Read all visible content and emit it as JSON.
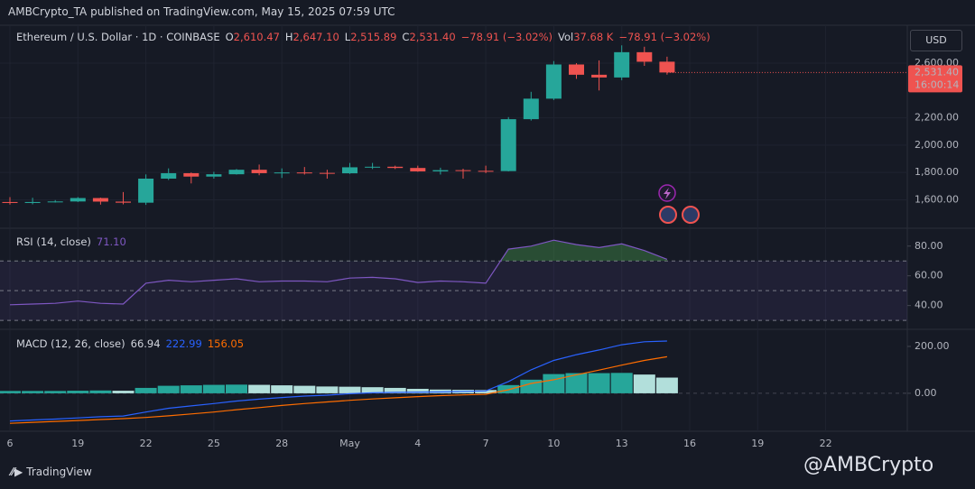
{
  "header": "AMBCrypto_TA published on TradingView.com, May 15, 2025 07:59 UTC",
  "brand": "TradingView",
  "watermark": "@AMBCrypto",
  "chart_data": [
    {
      "type": "candlestick",
      "title": "Ethereum / U.S. Dollar · 1D · COINBASE",
      "legend": [
        {
          "label": "O",
          "value": "2,610.47"
        },
        {
          "label": "H",
          "value": "2,647.10"
        },
        {
          "label": "L",
          "value": "2,515.89"
        },
        {
          "label": "C",
          "value": "2,531.40"
        }
      ],
      "change": "−78.91 (−3.02%)",
      "volume": {
        "label": "Vol",
        "value": "37.68 K",
        "change": "−78.91 (−3.02%)"
      },
      "currency": "USD",
      "last_price": {
        "label": "2,531.40",
        "countdown": "16:00:14"
      },
      "categories": [
        "6",
        null,
        null,
        "19",
        null,
        null,
        "22",
        null,
        null,
        "25",
        null,
        null,
        "28",
        null,
        null,
        "May",
        null,
        null,
        "4",
        null,
        null,
        "7",
        null,
        null,
        "10",
        null,
        null,
        "13",
        null,
        null,
        "16",
        null,
        null,
        "19",
        null,
        null,
        "22"
      ],
      "open": [
        1584,
        1577,
        1584,
        1588,
        1613,
        1587,
        1579,
        1755,
        1795,
        1770,
        1787,
        1820,
        1795,
        1800,
        1797,
        1794,
        1838,
        1842,
        1833,
        1808,
        1817,
        1812,
        1810,
        2190,
        2340,
        2590,
        2515,
        2495,
        2680,
        2610.47,
        null,
        null,
        null,
        null,
        null,
        null,
        null
      ],
      "high": [
        1620,
        1615,
        1598,
        1620,
        1616,
        1657,
        1786,
        1830,
        1800,
        1805,
        1825,
        1858,
        1830,
        1840,
        1820,
        1870,
        1870,
        1850,
        1850,
        1835,
        1828,
        1850,
        2205,
        2390,
        2615,
        2600,
        2620,
        2730,
        2720,
        2647.1,
        null,
        null,
        null,
        null,
        null,
        null,
        null
      ],
      "low": [
        1565,
        1567,
        1580,
        1584,
        1565,
        1567,
        1563,
        1745,
        1720,
        1755,
        1785,
        1780,
        1760,
        1785,
        1755,
        1790,
        1825,
        1825,
        1805,
        1785,
        1755,
        1795,
        1808,
        2180,
        2330,
        2485,
        2400,
        2475,
        2580,
        2515.89,
        null,
        null,
        null,
        null,
        null,
        null,
        null
      ],
      "close": [
        1577,
        1584,
        1588,
        1613,
        1587,
        1579,
        1755,
        1795,
        1770,
        1787,
        1820,
        1795,
        1800,
        1797,
        1794,
        1838,
        1842,
        1833,
        1808,
        1817,
        1812,
        1810,
        2190,
        2340,
        2590,
        2515,
        2495,
        2680,
        2610,
        2531.4,
        null,
        null,
        null,
        null,
        null,
        null,
        null
      ],
      "up_color": "#26a69a",
      "down_color": "#ef5350",
      "ylim": [
        1392,
        2877
      ],
      "yticks": [
        {
          "value": 1600,
          "label": "1,600.00"
        },
        {
          "value": 1800,
          "label": "1,800.00"
        },
        {
          "value": 2000,
          "label": "2,000.00"
        },
        {
          "value": 2200,
          "label": "2,200.00"
        },
        {
          "value": 2600,
          "label": "2,600.00"
        }
      ],
      "grid": true
    },
    {
      "type": "line",
      "title": "RSI (14, close)",
      "legend_values": [
        "71.10"
      ],
      "values": [
        40.5,
        41,
        41.5,
        43,
        41.5,
        41,
        55,
        57,
        56,
        57,
        58,
        56,
        56.5,
        56.5,
        56,
        58.5,
        59,
        58,
        55.5,
        56.5,
        56,
        55,
        78,
        80,
        84,
        81,
        79,
        81.5,
        77,
        71.1,
        null,
        null,
        null,
        null,
        null,
        null,
        null
      ],
      "color": "#7e57c2",
      "bands": [
        30,
        50,
        70
      ],
      "ylim": [
        24,
        92
      ],
      "yticks": [
        {
          "value": 40,
          "label": "40.00"
        },
        {
          "value": 60,
          "label": "60.00"
        },
        {
          "value": 80,
          "label": "80.00"
        }
      ]
    },
    {
      "type": "macd",
      "title": "MACD (12, 26, close)",
      "legend_values": [
        "66.94",
        "222.99",
        "156.05"
      ],
      "histogram": [
        10,
        10,
        10,
        11,
        12,
        11,
        23,
        32,
        34,
        36,
        37,
        36,
        34,
        32,
        29,
        28,
        26,
        23,
        19,
        16,
        15,
        14,
        35,
        58,
        82,
        86,
        86,
        87,
        80,
        66.94,
        null,
        null,
        null,
        null,
        null,
        null,
        null
      ],
      "macd": [
        -118,
        -114,
        -110,
        -105,
        -100,
        -97,
        -80,
        -64,
        -54,
        -44,
        -33,
        -25,
        -18,
        -12,
        -8,
        -2,
        2,
        4,
        5,
        6,
        8,
        10,
        50,
        100,
        140,
        165,
        185,
        207,
        220,
        222.99,
        null,
        null,
        null,
        null,
        null,
        null,
        null
      ],
      "signal": [
        -128,
        -124,
        -120,
        -116,
        -112,
        -108,
        -103,
        -96,
        -88,
        -80,
        -70,
        -61,
        -52,
        -44,
        -37,
        -30,
        -24,
        -19,
        -14,
        -10,
        -7,
        -4,
        15,
        42,
        58,
        79,
        99,
        120,
        140,
        156.05,
        null,
        null,
        null,
        null,
        null,
        null,
        null
      ],
      "histogram_colors": [
        "#26a69a",
        "#b2dfdb"
      ],
      "macd_color": "#2962ff",
      "signal_color": "#ff6d00",
      "ylim": [
        -162,
        273
      ],
      "yticks": [
        {
          "value": 0,
          "label": "0.00"
        },
        {
          "value": 200,
          "label": "200.00"
        }
      ]
    }
  ]
}
